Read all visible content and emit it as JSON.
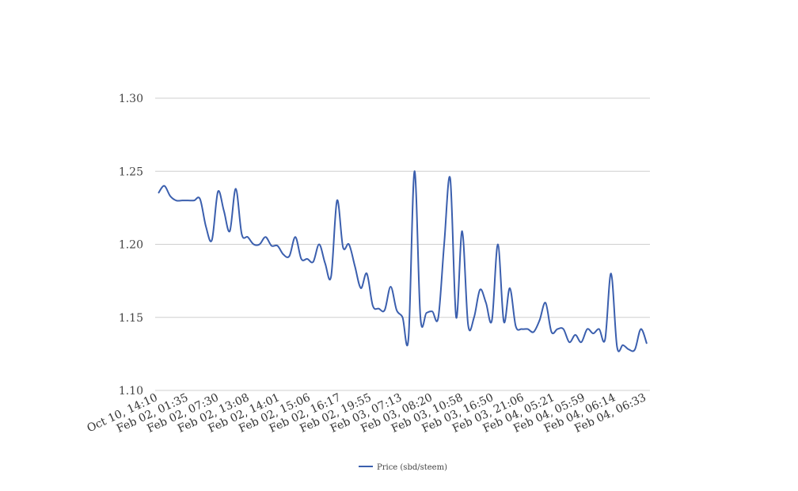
{
  "chart_data": {
    "type": "line",
    "title": "",
    "xlabel": "",
    "ylabel": "",
    "ylim": [
      1.1,
      1.3
    ],
    "yticks": [
      "1.30",
      "1.25",
      "1.20",
      "1.15",
      "1.10"
    ],
    "grid": true,
    "legend_position": "bottom",
    "x_tick_labels": [
      "Oct 10, 14:10",
      "Feb 02, 01:35",
      "Feb 02, 07:30",
      "Feb 02, 13:08",
      "Feb 02, 14:01",
      "Feb 02, 15:06",
      "Feb 02, 16:17",
      "Feb 02, 19:55",
      "Feb 03, 07:13",
      "Feb 03, 08:20",
      "Feb 03, 10:58",
      "Feb 03, 16:50",
      "Feb 03, 21:06",
      "Feb 04, 05:21",
      "Feb 04, 05:59",
      "Feb 04, 06:14",
      "Feb 04, 06:33"
    ],
    "series": [
      {
        "name": "Price (sbd/steem)",
        "color": "#3b5fae",
        "values": [
          1.235,
          1.24,
          1.233,
          1.23,
          1.23,
          1.23,
          1.23,
          1.231,
          1.212,
          1.203,
          1.236,
          1.223,
          1.209,
          1.238,
          1.207,
          1.205,
          1.2,
          1.2,
          1.205,
          1.199,
          1.199,
          1.193,
          1.192,
          1.205,
          1.19,
          1.19,
          1.188,
          1.2,
          1.187,
          1.178,
          1.23,
          1.198,
          1.2,
          1.185,
          1.17,
          1.18,
          1.158,
          1.156,
          1.155,
          1.171,
          1.155,
          1.15,
          1.136,
          1.25,
          1.15,
          1.153,
          1.154,
          1.15,
          1.201,
          1.245,
          1.15,
          1.209,
          1.145,
          1.15,
          1.169,
          1.16,
          1.148,
          1.2,
          1.147,
          1.17,
          1.144,
          1.142,
          1.142,
          1.14,
          1.148,
          1.16,
          1.14,
          1.142,
          1.142,
          1.133,
          1.138,
          1.133,
          1.142,
          1.139,
          1.142,
          1.135,
          1.18,
          1.13,
          1.131,
          1.128,
          1.128,
          1.142,
          1.132
        ]
      }
    ]
  }
}
